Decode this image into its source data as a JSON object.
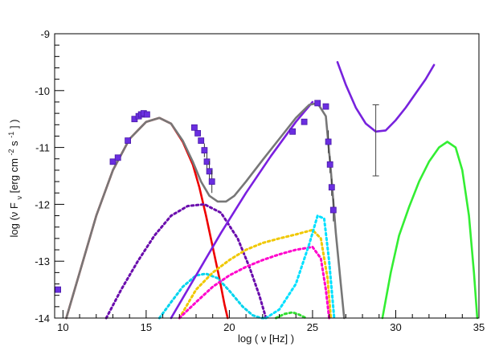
{
  "chart_data": {
    "type": "line",
    "title": "",
    "xlabel": "log ( ν [Hz] )",
    "ylabel": {
      "prefix": "log (ν F",
      "sub": "ν",
      "middle": " [erg cm",
      "sup1": "-2",
      "middle2": " s",
      "sup2": "-1",
      "suffix": "] )"
    },
    "xlim": [
      9.5,
      35
    ],
    "ylim": [
      -14,
      -9
    ],
    "xticks": [
      10,
      15,
      20,
      25,
      30,
      35
    ],
    "xtick_labels": [
      "10",
      "15",
      "20",
      "25",
      "30",
      "35"
    ],
    "yticks": [
      -9,
      -10,
      -11,
      -12,
      -13,
      -14
    ],
    "ytick_labels": [
      "-9",
      "-10",
      "-11",
      "-12",
      "-13",
      "-14"
    ],
    "grid": false,
    "legend": "none",
    "series": [
      {
        "color": "#ee0000",
        "dash": "solid",
        "x": [
          10.2,
          11,
          12,
          13,
          14,
          15,
          15.8,
          16.5,
          17.2,
          17.8,
          18.2,
          18.6,
          19.0,
          19.4,
          19.7,
          19.9
        ],
        "y": [
          -14.0,
          -13.2,
          -12.2,
          -11.4,
          -10.85,
          -10.55,
          -10.48,
          -10.58,
          -10.9,
          -11.3,
          -11.7,
          -12.2,
          -12.75,
          -13.3,
          -13.75,
          -14.0
        ]
      },
      {
        "color": "#6a0dad",
        "dash": "dotted",
        "x": [
          12.6,
          13.5,
          14.5,
          15.5,
          16.5,
          17.5,
          18.5,
          19.5,
          20.5,
          21.2,
          21.8,
          22.2
        ],
        "y": [
          -14.0,
          -13.5,
          -13.0,
          -12.55,
          -12.2,
          -12.03,
          -12.0,
          -12.15,
          -12.6,
          -13.1,
          -13.6,
          -14.0
        ]
      },
      {
        "color": "#00d4ee",
        "dash": "dotted",
        "x": [
          15.8,
          16.5,
          17.2,
          18.0,
          18.6,
          19.3,
          20.0,
          20.8,
          21.4,
          21.9,
          22.2
        ],
        "y": [
          -14.0,
          -13.72,
          -13.45,
          -13.25,
          -13.22,
          -13.3,
          -13.52,
          -13.8,
          -13.95,
          -14.0,
          -14.0
        ]
      },
      {
        "color": "#7b1fe0",
        "dash": "solid",
        "x": [
          16.5,
          18,
          19.5,
          21,
          22.5,
          24,
          25.0
        ],
        "y": [
          -14.0,
          -13.25,
          -12.5,
          -11.8,
          -11.15,
          -10.55,
          -10.2
        ]
      },
      {
        "color": "#f0c800",
        "dash": "dotted",
        "x": [
          17.0,
          18.0,
          19.0,
          20.0,
          21.0,
          22.0,
          23.0,
          24.0,
          25.0,
          25.5,
          25.9,
          26.1
        ],
        "y": [
          -14.0,
          -13.5,
          -13.2,
          -12.98,
          -12.8,
          -12.68,
          -12.6,
          -12.53,
          -12.45,
          -12.6,
          -13.3,
          -14.0
        ]
      },
      {
        "color": "#ff00cc",
        "dash": "dotted",
        "x": [
          17.0,
          18.0,
          19.0,
          20.0,
          21.0,
          22.0,
          23.0,
          24.0,
          25.0,
          25.5,
          25.8,
          26.0
        ],
        "y": [
          -14.0,
          -13.72,
          -13.45,
          -13.25,
          -13.1,
          -12.98,
          -12.88,
          -12.8,
          -12.75,
          -12.95,
          -13.5,
          -14.0
        ]
      },
      {
        "color": "#00e0ff",
        "dash": "dotted",
        "x": [
          22.2,
          23.0,
          24.0,
          24.8,
          25.3,
          25.7,
          26.0,
          26.3
        ],
        "y": [
          -14.0,
          -13.85,
          -13.4,
          -12.7,
          -12.2,
          -12.25,
          -13.0,
          -14.0
        ]
      },
      {
        "color": "#33dd33",
        "dash": "dotted",
        "x": [
          22.8,
          23.3,
          23.8,
          24.2,
          24.6
        ],
        "y": [
          -14.0,
          -13.93,
          -13.9,
          -13.94,
          -14.0
        ]
      },
      {
        "color": "#33ee33",
        "dash": "solid",
        "x": [
          29.2,
          29.7,
          30.2,
          30.8,
          31.4,
          32.0,
          32.6,
          33.1,
          33.6,
          34.0,
          34.4,
          34.7,
          34.9
        ],
        "y": [
          -14.0,
          -13.2,
          -12.55,
          -12.05,
          -11.6,
          -11.25,
          -11.0,
          -10.9,
          -11.0,
          -11.4,
          -12.2,
          -13.2,
          -14.0
        ]
      },
      {
        "color": "#7722dd",
        "dash": "solid",
        "x": [
          26.5,
          27.0,
          27.6,
          28.2,
          28.8,
          29.4,
          30.0,
          30.6,
          31.2,
          31.8,
          32.3
        ],
        "y": [
          -9.5,
          -9.9,
          -10.3,
          -10.58,
          -10.72,
          -10.7,
          -10.52,
          -10.3,
          -10.05,
          -9.8,
          -9.55
        ]
      },
      {
        "color": "#777777",
        "dash": "solid",
        "x": [
          10.2,
          11,
          12,
          13,
          14,
          15,
          15.8,
          16.5,
          17.2,
          17.8,
          18.3,
          18.8,
          19.3,
          19.8,
          20.3,
          21,
          22,
          23,
          24,
          24.8,
          25.3,
          25.8,
          26.1,
          26.4,
          26.7,
          26.9
        ],
        "y": [
          -14.0,
          -13.2,
          -12.2,
          -11.4,
          -10.85,
          -10.55,
          -10.48,
          -10.58,
          -10.88,
          -11.25,
          -11.6,
          -11.85,
          -11.95,
          -11.95,
          -11.85,
          -11.6,
          -11.22,
          -10.85,
          -10.48,
          -10.25,
          -10.22,
          -10.45,
          -11.4,
          -12.5,
          -13.4,
          -14.0
        ]
      }
    ],
    "data_points": {
      "color": "#6a2ee0",
      "x": [
        9.7,
        13.0,
        13.3,
        13.9,
        14.3,
        14.55,
        14.7,
        14.85,
        15.05,
        17.9,
        18.1,
        18.3,
        18.5,
        18.65,
        18.8,
        18.95,
        23.8,
        24.5,
        25.3,
        25.8,
        25.95,
        26.05,
        26.15,
        26.25
      ],
      "y": [
        -13.5,
        -11.25,
        -11.18,
        -10.88,
        -10.5,
        -10.45,
        -10.42,
        -10.4,
        -10.42,
        -10.65,
        -10.75,
        -10.88,
        -11.05,
        -11.25,
        -11.42,
        -11.6,
        -10.72,
        -10.55,
        -10.22,
        -10.28,
        -10.9,
        -11.3,
        -11.7,
        -12.1
      ],
      "yerr": [
        0,
        0,
        0,
        0,
        0,
        0,
        0,
        0,
        0,
        0,
        0,
        0,
        0.12,
        0.15,
        0.18,
        0.2,
        0,
        0,
        0,
        0,
        0.2,
        0.15,
        0.15,
        0.2
      ]
    },
    "annotations": [
      {
        "type": "errorbar",
        "x": 28.8,
        "y": -10.75,
        "yerr": [
          0.5,
          0.75
        ]
      }
    ]
  }
}
